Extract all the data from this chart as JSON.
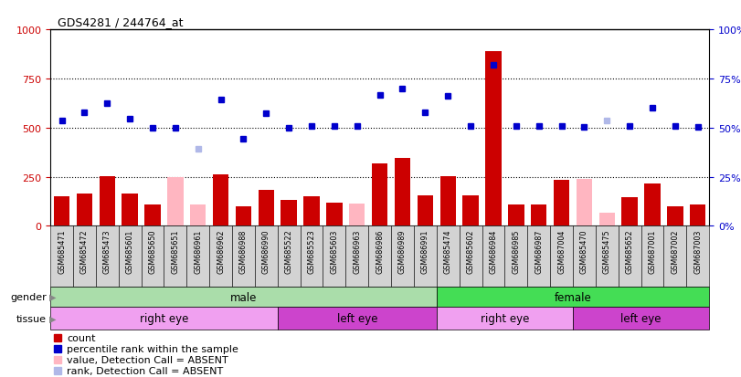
{
  "title": "GDS4281 / 244764_at",
  "samples": [
    "GSM685471",
    "GSM685472",
    "GSM685473",
    "GSM685601",
    "GSM685650",
    "GSM685651",
    "GSM686961",
    "GSM686962",
    "GSM686988",
    "GSM686990",
    "GSM685522",
    "GSM685523",
    "GSM685603",
    "GSM686963",
    "GSM686986",
    "GSM686989",
    "GSM686991",
    "GSM685474",
    "GSM685602",
    "GSM686984",
    "GSM686985",
    "GSM686987",
    "GSM687004",
    "GSM685470",
    "GSM685475",
    "GSM685652",
    "GSM687001",
    "GSM687002",
    "GSM687003"
  ],
  "count": [
    150,
    165,
    255,
    165,
    110,
    248,
    110,
    260,
    100,
    185,
    130,
    150,
    120,
    115,
    320,
    345,
    155,
    255,
    155,
    890,
    110,
    110,
    235,
    240,
    65,
    145,
    215,
    100,
    110
  ],
  "count_absent": [
    false,
    false,
    false,
    false,
    false,
    true,
    true,
    false,
    false,
    false,
    false,
    false,
    false,
    true,
    false,
    false,
    false,
    false,
    false,
    false,
    false,
    false,
    false,
    true,
    true,
    false,
    false,
    false,
    false
  ],
  "rank": [
    535,
    580,
    625,
    545,
    500,
    500,
    390,
    645,
    445,
    575,
    500,
    510,
    510,
    510,
    665,
    700,
    580,
    660,
    510,
    820,
    510,
    510,
    510,
    505,
    535,
    510,
    600,
    510,
    505
  ],
  "rank_absent": [
    false,
    false,
    false,
    false,
    false,
    false,
    true,
    false,
    false,
    false,
    false,
    false,
    false,
    false,
    false,
    false,
    false,
    false,
    false,
    false,
    false,
    false,
    false,
    false,
    true,
    false,
    false,
    false,
    false
  ],
  "gender_groups": [
    {
      "label": "male",
      "start": 0,
      "end": 17,
      "color": "#aaddaa"
    },
    {
      "label": "female",
      "start": 17,
      "end": 29,
      "color": "#44dd55"
    }
  ],
  "tissue_groups": [
    {
      "label": "right eye",
      "start": 0,
      "end": 10,
      "color": "#f0a0f0"
    },
    {
      "label": "left eye",
      "start": 10,
      "end": 17,
      "color": "#cc44cc"
    },
    {
      "label": "right eye",
      "start": 17,
      "end": 23,
      "color": "#f0a0f0"
    },
    {
      "label": "left eye",
      "start": 23,
      "end": 29,
      "color": "#cc44cc"
    }
  ],
  "ylim_left": [
    0,
    1000
  ],
  "yticks_left": [
    0,
    250,
    500,
    750,
    1000
  ],
  "yticks_right": [
    0,
    25,
    50,
    75,
    100
  ],
  "bar_color": "#cc0000",
  "bar_absent_color": "#ffb6c1",
  "rank_color": "#0000cc",
  "rank_absent_color": "#b0b8e8",
  "bg_color": "#ffffff",
  "tick_label_color_left": "#cc0000",
  "tick_label_color_right": "#0000cc",
  "sample_box_color": "#d3d3d3",
  "legend_items": [
    {
      "color": "#cc0000",
      "label": "count"
    },
    {
      "color": "#0000cc",
      "label": "percentile rank within the sample"
    },
    {
      "color": "#ffb6c1",
      "label": "value, Detection Call = ABSENT"
    },
    {
      "color": "#b0b8e8",
      "label": "rank, Detection Call = ABSENT"
    }
  ]
}
